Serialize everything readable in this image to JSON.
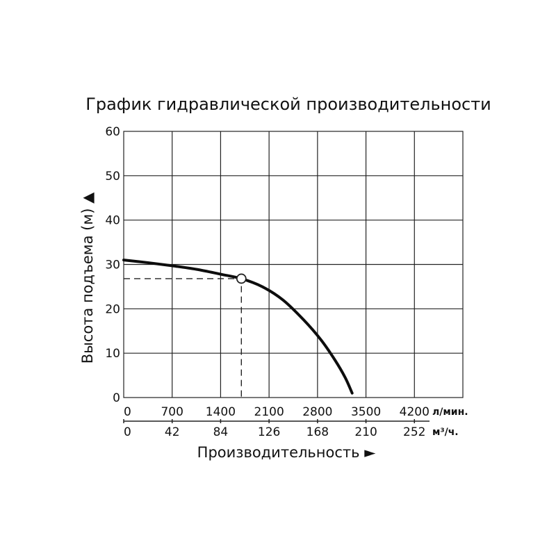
{
  "chart_data": {
    "type": "line",
    "title": "График гидравлической производительности",
    "ylabel": "Высота подъема (м) ▲",
    "xlabel": "Производительность ►",
    "ylim": [
      0,
      60
    ],
    "y_ticks": [
      "0",
      "10",
      "20",
      "30",
      "40",
      "50",
      "60"
    ],
    "x_axes": [
      {
        "unit": "л/мин.",
        "ticks": [
          "0",
          "700",
          "1400",
          "2100",
          "2800",
          "3500",
          "4200"
        ],
        "max": 4900
      },
      {
        "unit": "м³/ч.",
        "ticks": [
          "0",
          "42",
          "84",
          "126",
          "168",
          "210",
          "252"
        ],
        "max": 294
      }
    ],
    "grid": true,
    "series": [
      {
        "x": [
          0,
          350,
          700,
          1050,
          1400,
          1700,
          2000,
          2300,
          2600,
          2850,
          3050,
          3200,
          3300
        ],
        "y": [
          31,
          30.4,
          29.7,
          28.9,
          27.8,
          26.8,
          25.0,
          22.0,
          17.5,
          13.0,
          8.5,
          4.5,
          1.0
        ]
      }
    ],
    "annotation_point": {
      "x": 1700,
      "y": 26.8
    }
  }
}
